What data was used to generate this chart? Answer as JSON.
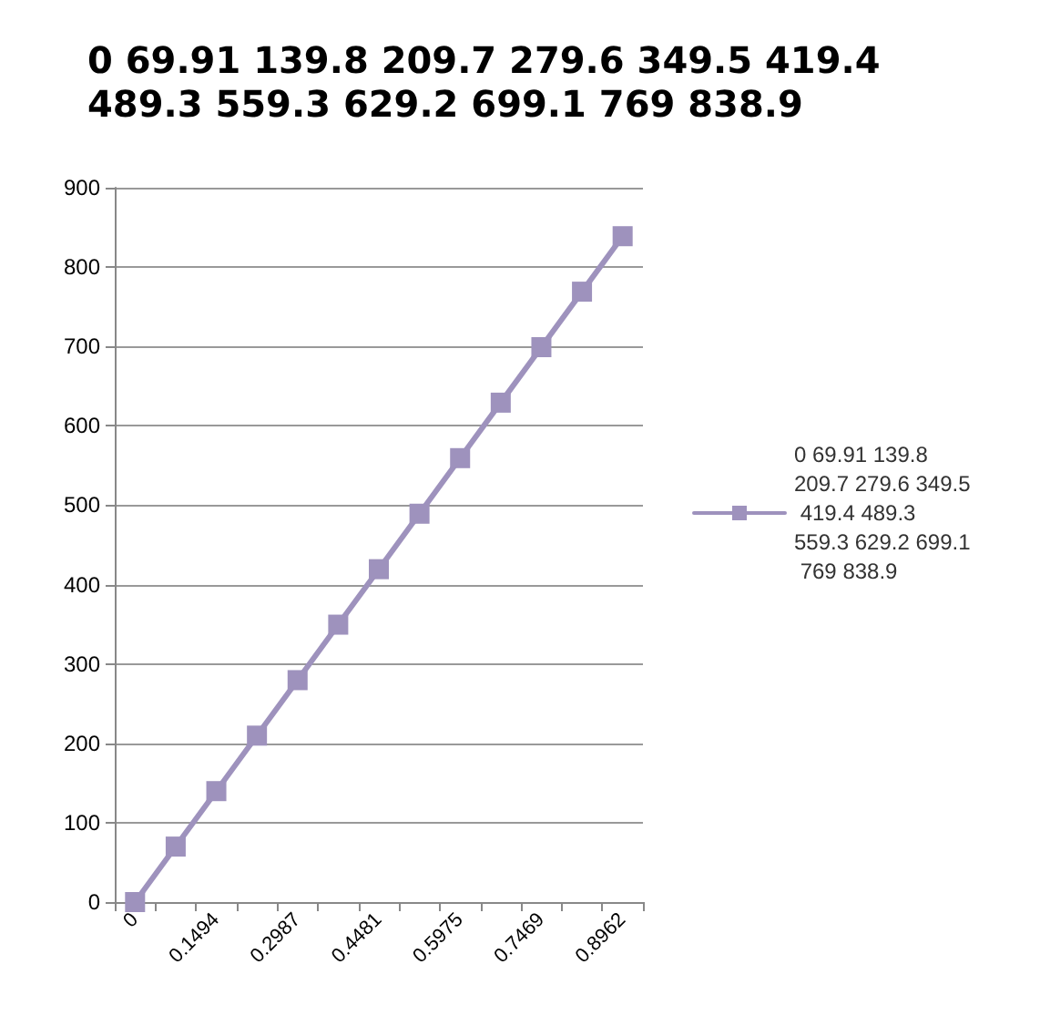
{
  "chart_data": {
    "type": "line",
    "title": "0 69.91 139.8 209.7 279.6 349.5 419.4 489.3 559.3 629.2 699.1 769 838.9",
    "categories": [
      "0",
      null,
      "0.1494",
      null,
      "0.2987",
      null,
      "0.4481",
      null,
      "0.5975",
      null,
      "0.7469",
      null,
      "0.8962"
    ],
    "series": [
      {
        "name": "0 69.91 139.8 209.7 279.6 349.5 419.4 489.3 559.3 629.2 699.1 769 838.9",
        "color": "#9e92bd",
        "values": [
          0,
          69.91,
          139.8,
          209.7,
          279.6,
          349.5,
          419.4,
          489.3,
          559.3,
          629.2,
          699.1,
          769,
          838.9
        ]
      }
    ],
    "ylim": [
      0,
      900
    ],
    "yticks": [
      0,
      100,
      200,
      300,
      400,
      500,
      600,
      700,
      800,
      900
    ],
    "grid": "y",
    "legend": "right",
    "marker": "square",
    "line_style": "solid"
  }
}
